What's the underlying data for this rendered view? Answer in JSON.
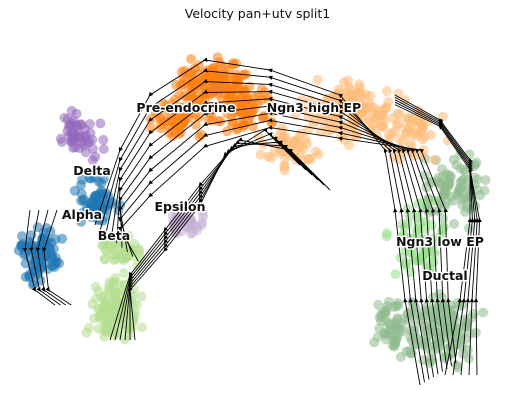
{
  "chart_data": {
    "type": "scatter",
    "title": "Velocity pan+utv split1",
    "xlabel": "",
    "ylabel": "",
    "axes_visible": false,
    "grid": false,
    "legend": "on data",
    "overlay": "velocity streamlines with arrowheads",
    "clusters": [
      {
        "name": "Pre-endocrine",
        "color": "#ff7f0e"
      },
      {
        "name": "Ngn3 high EP",
        "color": "#ffbb78"
      },
      {
        "name": "Delta",
        "color": "#9467bd"
      },
      {
        "name": "Alpha",
        "color": "#1f77b4"
      },
      {
        "name": "Beta",
        "color": "#b5de8f"
      },
      {
        "name": "Epsilon",
        "color": "#c5b0d5"
      },
      {
        "name": "Ngn3 low EP",
        "color": "#98df8a"
      },
      {
        "name": "Ductal",
        "color": "#8fbc8f"
      }
    ]
  }
}
